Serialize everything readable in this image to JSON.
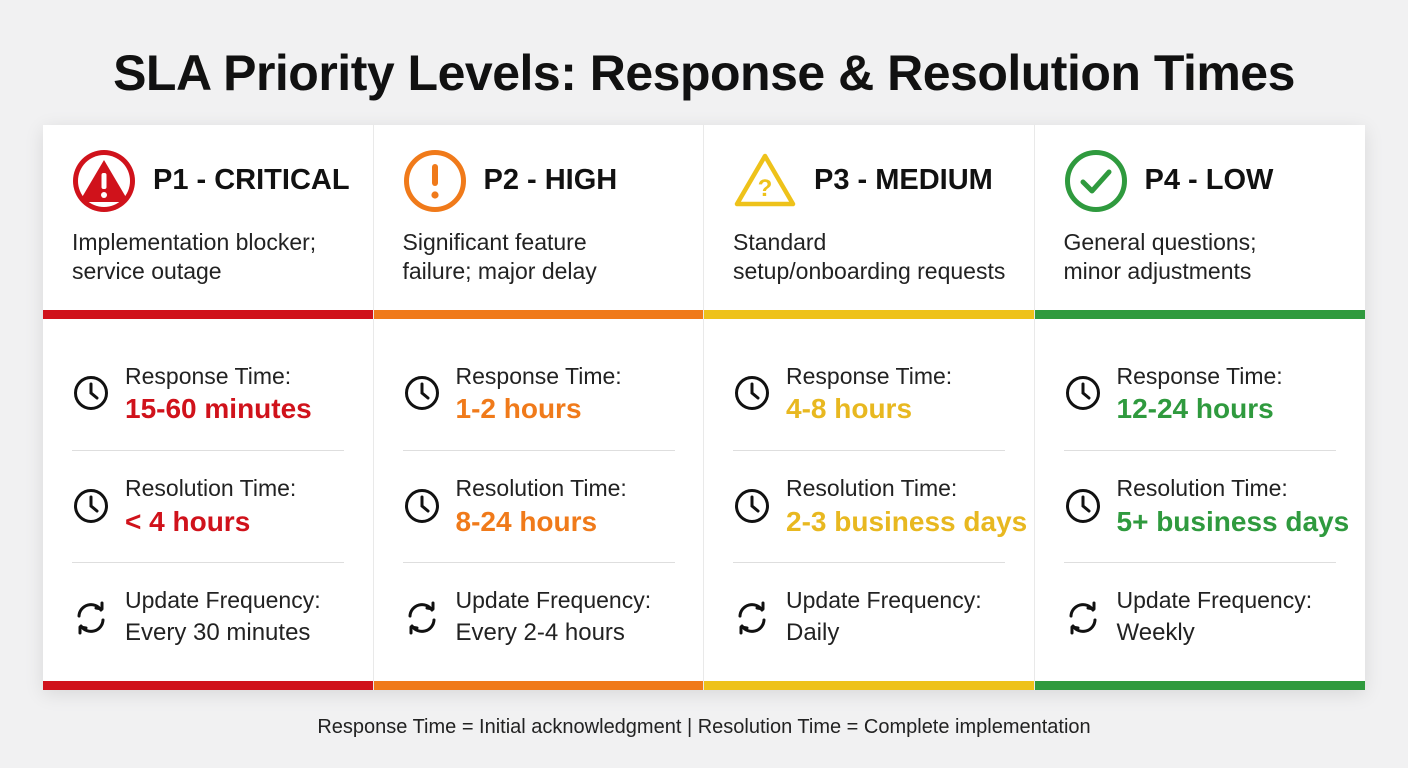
{
  "title": "SLA Priority Levels: Response & Resolution Times",
  "footer": "Response Time = Initial acknowledgment | Resolution Time = Complete implementation",
  "colors": {
    "critical": "#d0121b",
    "high": "#f07a1a",
    "medium": "#eec21a",
    "medium_text": "#e8b820",
    "low": "#2f9a3e"
  },
  "cards": [
    {
      "priority": "P1 - CRITICAL",
      "icon": "alert-triangle-icon",
      "description": [
        "Implementation blocker;",
        "service outage"
      ],
      "response_label": "Response Time:",
      "response_value": "15-60 minutes",
      "resolution_label": "Resolution Time:",
      "resolution_value": "< 4 hours",
      "update_label": "Update Frequency:",
      "update_value": "Every 30 minutes"
    },
    {
      "priority": "P2 - HIGH",
      "icon": "exclamation-circle-icon",
      "description": [
        "Significant feature",
        "failure; major delay"
      ],
      "response_label": "Response Time:",
      "response_value": "1-2 hours",
      "resolution_label": "Resolution Time:",
      "resolution_value": "8-24 hours",
      "update_label": "Update Frequency:",
      "update_value": "Every 2-4 hours"
    },
    {
      "priority": "P3 - MEDIUM",
      "icon": "question-triangle-icon",
      "description": [
        "Standard",
        "setup/onboarding requests"
      ],
      "response_label": "Response Time:",
      "response_value": "4-8 hours",
      "resolution_label": "Resolution Time:",
      "resolution_value": "2-3 business days",
      "update_label": "Update Frequency:",
      "update_value": "Daily"
    },
    {
      "priority": "P4 - LOW",
      "icon": "check-circle-icon",
      "description": [
        "General questions;",
        "minor adjustments"
      ],
      "response_label": "Response Time:",
      "response_value": "12-24 hours",
      "resolution_label": "Resolution Time:",
      "resolution_value": "5+ business days",
      "update_label": "Update Frequency:",
      "update_value": "Weekly"
    }
  ]
}
